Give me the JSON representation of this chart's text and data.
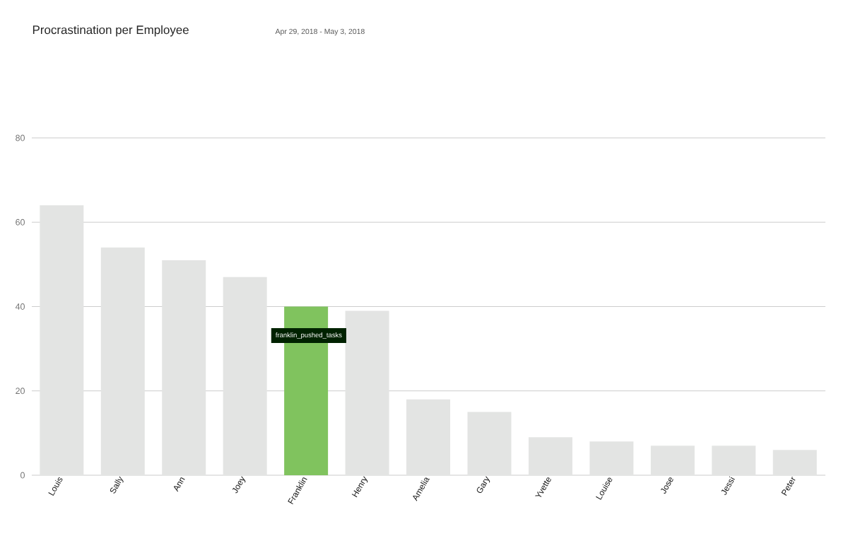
{
  "chart_data": {
    "type": "bar",
    "title": "Procrastination per Employee",
    "subtitle": "Apr 29, 2018 - May 3, 2018",
    "categories": [
      "Louis",
      "Sally",
      "Ann",
      "Joey",
      "Franklin",
      "Henry",
      "Amelia",
      "Gary",
      "Yvette",
      "Louise",
      "Jose",
      "Jessi",
      "Peter"
    ],
    "values": [
      64,
      54,
      51,
      47,
      40,
      39,
      18,
      15,
      9,
      8,
      7,
      7,
      6
    ],
    "colors": [
      "#e3e4e3",
      "#e3e4e3",
      "#e3e4e3",
      "#e3e4e3",
      "#80c35e",
      "#e3e4e3",
      "#e3e4e3",
      "#e3e4e3",
      "#e3e4e3",
      "#e3e4e3",
      "#e3e4e3",
      "#e3e4e3",
      "#e3e4e3"
    ],
    "ylim": [
      0,
      80
    ],
    "yticks": [
      0,
      20,
      40,
      60,
      80
    ],
    "grid": "y",
    "annotations": [
      "franklin_pushed_tasks"
    ]
  }
}
